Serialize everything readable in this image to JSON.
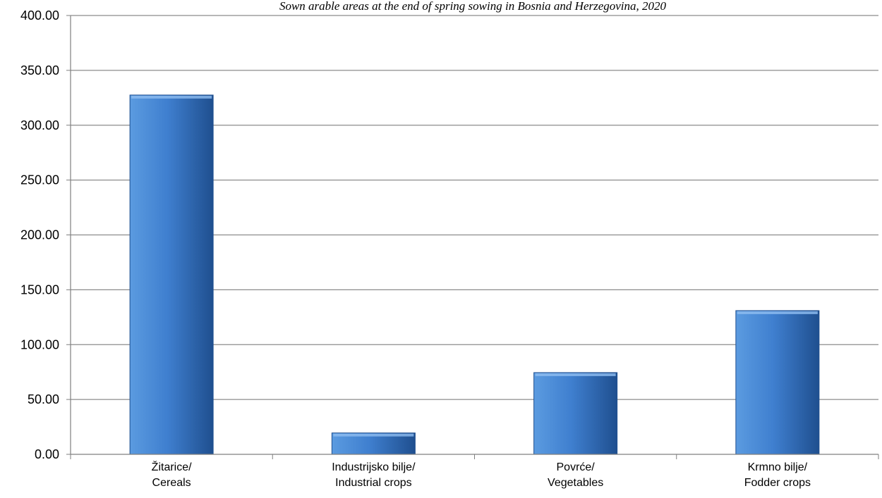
{
  "chart_data": {
    "type": "bar",
    "title": "Sown arable areas at the end of spring sowing in Bosnia and Herzegovina, 2020",
    "categories": [
      [
        "Žitarice/",
        "Cereals"
      ],
      [
        "Industrijsko bilje/",
        "Industrial crops"
      ],
      [
        "Povrće/",
        "Vegetables"
      ],
      [
        "Krmno bilje/",
        "Fodder crops"
      ]
    ],
    "values": [
      327.5,
      19.5,
      74.5,
      131.0
    ],
    "ylim": [
      0,
      400
    ],
    "ytick_step": 50,
    "ytick_labels": [
      "0.00",
      "50.00",
      "100.00",
      "150.00",
      "200.00",
      "250.00",
      "300.00",
      "350.00",
      "400.00"
    ],
    "grid": true,
    "legend": "none",
    "colors": {
      "bar_light": "#5b9be0",
      "bar_mid": "#3f7fcf",
      "bar_dark": "#1f4f8f",
      "grid": "#8c8c8c",
      "axis": "#7f7f7f"
    }
  }
}
